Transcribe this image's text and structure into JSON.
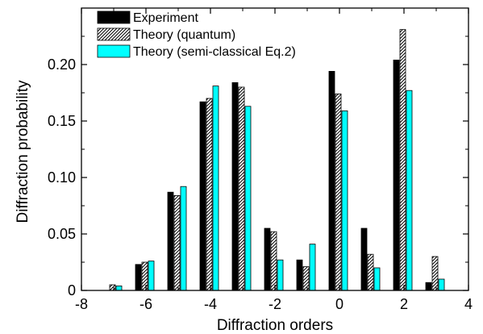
{
  "chart_data": {
    "type": "bar",
    "xlabel": "Diffraction orders",
    "ylabel": "Diffraction probability",
    "xlim": [
      -8,
      4
    ],
    "ylim": [
      0,
      0.25
    ],
    "xticks": [
      "-8",
      "-6",
      "-4",
      "-2",
      "0",
      "2",
      "4"
    ],
    "yticks": [
      "0",
      "0.05",
      "0.10",
      "0.15",
      "0.20"
    ],
    "legend_position": "top-left",
    "x": [
      -7,
      -6,
      -5,
      -4,
      -3,
      -2,
      -1,
      0,
      1,
      2,
      3
    ],
    "series": [
      {
        "name": "Experiment",
        "style": "solid-black",
        "color": "#000000",
        "values": [
          0.0,
          0.023,
          0.087,
          0.167,
          0.184,
          0.055,
          0.027,
          0.194,
          0.055,
          0.204,
          0.007
        ]
      },
      {
        "name": "Theory (quantum)",
        "style": "hatched",
        "color": "#ffffff",
        "values": [
          0.005,
          0.025,
          0.084,
          0.17,
          0.18,
          0.052,
          0.021,
          0.174,
          0.032,
          0.231,
          0.03
        ]
      },
      {
        "name": "Theory (semi-classical Eq.2)",
        "style": "solid-cyan",
        "color": "#00ffff",
        "values": [
          0.004,
          0.026,
          0.092,
          0.181,
          0.163,
          0.027,
          0.041,
          0.159,
          0.02,
          0.177,
          0.01
        ]
      }
    ]
  }
}
